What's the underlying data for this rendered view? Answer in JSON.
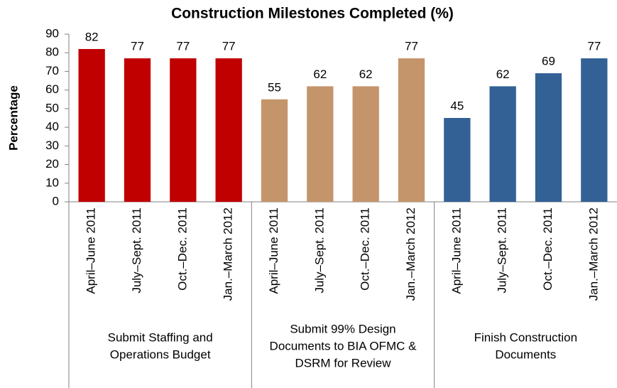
{
  "chart_data": {
    "type": "bar",
    "title": "Construction Milestones Completed (%)",
    "y_label": "Percentage",
    "ylim": [
      0,
      90
    ],
    "yticks": [
      0,
      10,
      20,
      30,
      40,
      50,
      60,
      70,
      80,
      90
    ],
    "groups": [
      {
        "label": [
          "Submit Staffing and",
          "Operations Budget"
        ],
        "color": "#c00000",
        "categories": [
          "April–June 2011",
          "July–Sept. 2011",
          "Oct.–Dec. 2011",
          "Jan.–March 2012"
        ],
        "values": [
          82,
          77,
          77,
          77
        ]
      },
      {
        "label": [
          "Submit 99% Design",
          "Documents to BIA OFMC &",
          "DSRM for Review"
        ],
        "color": "#c4956a",
        "categories": [
          "April–June 2011",
          "July–Sept. 2011",
          "Oct.–Dec. 2011",
          "Jan.–March 2012"
        ],
        "values": [
          55,
          62,
          62,
          77
        ]
      },
      {
        "label": [
          "Finish Construction",
          "Documents"
        ],
        "color": "#336195",
        "categories": [
          "April–June 2011",
          "July–Sept. 2011",
          "Oct.–Dec. 2011",
          "Jan.–March 2012"
        ],
        "values": [
          45,
          62,
          69,
          77
        ]
      }
    ]
  }
}
